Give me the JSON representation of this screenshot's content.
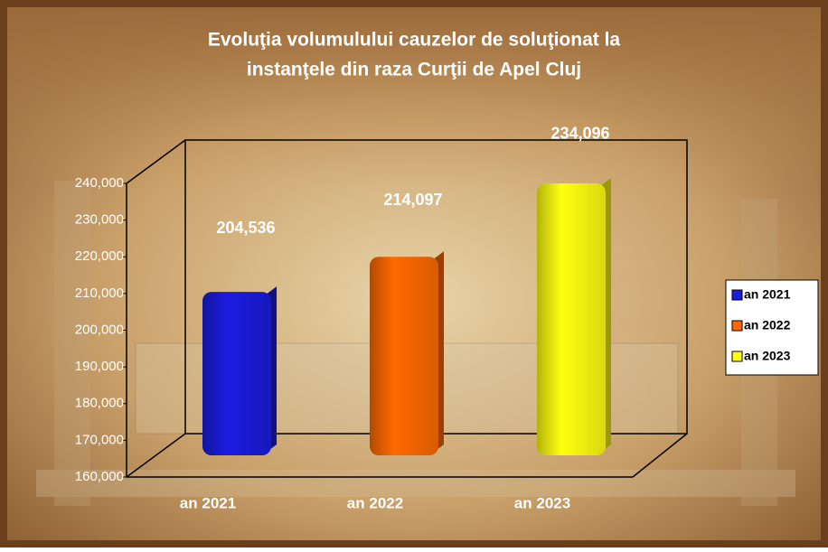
{
  "chart_data": {
    "type": "bar3d",
    "title": [
      "Evoluţia volumulului cauzelor de soluţionat la",
      "instanţele din raza Curţii de Apel Cluj"
    ],
    "categories": [
      "an 2021",
      "an 2022",
      "an 2023"
    ],
    "values": [
      204536,
      214097,
      234096
    ],
    "value_labels": [
      "204,536",
      "214,097",
      "234,096"
    ],
    "colors": [
      "#1c1ce0",
      "#ff6a00",
      "#ffff10"
    ],
    "ylim": [
      160000,
      240000
    ],
    "yticks": [
      {
        "value": 160000,
        "label": "160,000"
      },
      {
        "value": 170000,
        "label": "170,000"
      },
      {
        "value": 180000,
        "label": "180,000"
      },
      {
        "value": 190000,
        "label": "190,000"
      },
      {
        "value": 200000,
        "label": "200,000"
      },
      {
        "value": 210000,
        "label": "210,000"
      },
      {
        "value": 220000,
        "label": "220,000"
      },
      {
        "value": 230000,
        "label": "230,000"
      },
      {
        "value": 240000,
        "label": "240,000"
      }
    ],
    "legend": "right"
  }
}
